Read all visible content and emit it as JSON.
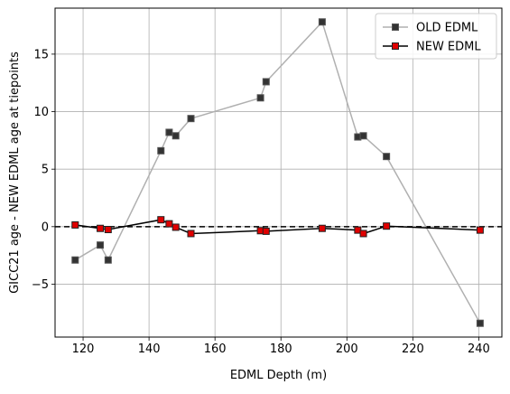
{
  "chart_data": {
    "type": "line",
    "xlabel": "EDML Depth (m)",
    "ylabel": "GICC21 age - NEW EDML age at tiepoints",
    "xlim": [
      111.5,
      247
    ],
    "ylim": [
      -9.6,
      19.0
    ],
    "x_ticks": [
      120,
      140,
      160,
      180,
      200,
      220,
      240
    ],
    "y_ticks": [
      -5,
      0,
      5,
      10,
      15
    ],
    "grid": true,
    "legend_position": "top-right",
    "reference_line": {
      "y": 0,
      "style": "dashed",
      "color": "#000000"
    },
    "series": [
      {
        "name": "OLD EDML",
        "line_color": "#b0b0b0",
        "marker": "square",
        "marker_face": "#333333",
        "marker_edge": "#555555",
        "points": [
          {
            "x": 117.6,
            "y": -2.9
          },
          {
            "x": 125.2,
            "y": -1.6
          },
          {
            "x": 127.6,
            "y": -2.9
          },
          {
            "x": 143.6,
            "y": 6.6
          },
          {
            "x": 146.1,
            "y": 8.2
          },
          {
            "x": 148.1,
            "y": 7.9
          },
          {
            "x": 152.7,
            "y": 9.4
          },
          {
            "x": 173.8,
            "y": 11.2
          },
          {
            "x": 175.5,
            "y": 12.6
          },
          {
            "x": 192.5,
            "y": 17.8
          },
          {
            "x": 203.3,
            "y": 7.8
          },
          {
            "x": 205.0,
            "y": 7.9
          },
          {
            "x": 212.0,
            "y": 6.1
          },
          {
            "x": 240.4,
            "y": -8.4
          }
        ]
      },
      {
        "name": "NEW EDML",
        "line_color": "#000000",
        "marker": "square",
        "marker_face": "#e00000",
        "marker_edge": "#222222",
        "points": [
          {
            "x": 117.6,
            "y": 0.15
          },
          {
            "x": 125.2,
            "y": -0.15
          },
          {
            "x": 127.6,
            "y": -0.25
          },
          {
            "x": 143.6,
            "y": 0.6
          },
          {
            "x": 146.1,
            "y": 0.25
          },
          {
            "x": 148.1,
            "y": -0.05
          },
          {
            "x": 152.7,
            "y": -0.6
          },
          {
            "x": 173.8,
            "y": -0.35
          },
          {
            "x": 175.5,
            "y": -0.4
          },
          {
            "x": 192.5,
            "y": -0.15
          },
          {
            "x": 203.3,
            "y": -0.3
          },
          {
            "x": 205.0,
            "y": -0.6
          },
          {
            "x": 212.0,
            "y": 0.05
          },
          {
            "x": 240.4,
            "y": -0.3
          }
        ]
      }
    ]
  }
}
